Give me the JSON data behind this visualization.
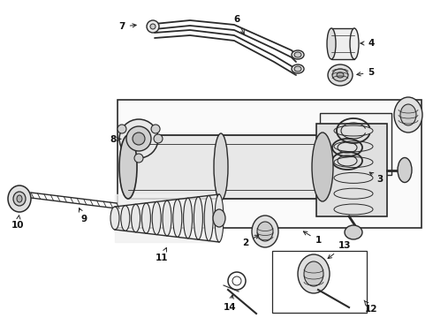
{
  "bg_color": "#ffffff",
  "line_color": "#2a2a2a",
  "fig_width": 4.9,
  "fig_height": 3.6,
  "dpi": 100,
  "hose_color": "#2a2a2a",
  "part_fill": "#e8e8e8",
  "part_fill2": "#f0f0f0"
}
